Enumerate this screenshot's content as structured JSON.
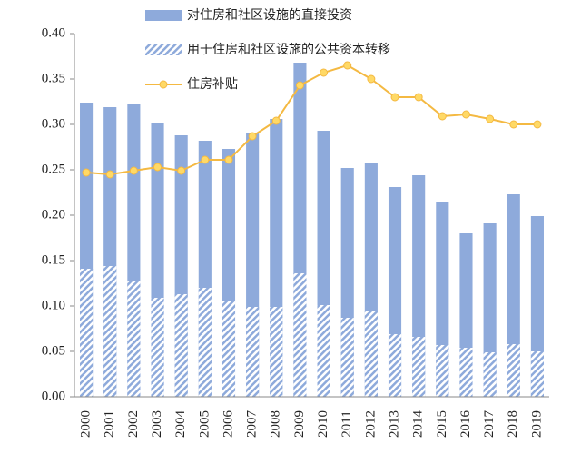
{
  "chart_data": {
    "type": "bar-line",
    "categories": [
      "2000",
      "2001",
      "2002",
      "2003",
      "2004",
      "2005",
      "2006",
      "2007",
      "2008",
      "2009",
      "2010",
      "2011",
      "2012",
      "2013",
      "2014",
      "2015",
      "2016",
      "2017",
      "2018",
      "2019"
    ],
    "series": [
      {
        "name": "对住房和社区设施的直接投资",
        "type": "bar",
        "color": "#8eaadb",
        "values": [
          0.324,
          0.319,
          0.322,
          0.301,
          0.288,
          0.282,
          0.273,
          0.291,
          0.306,
          0.368,
          0.293,
          0.252,
          0.258,
          0.231,
          0.244,
          0.214,
          0.18,
          0.191,
          0.223,
          0.199
        ]
      },
      {
        "name": "用于住房和社区设施的公共资本转移",
        "type": "hatched-bar",
        "color": "#8eaadb",
        "values": [
          0.141,
          0.144,
          0.127,
          0.109,
          0.113,
          0.12,
          0.105,
          0.099,
          0.099,
          0.136,
          0.101,
          0.087,
          0.095,
          0.069,
          0.066,
          0.057,
          0.054,
          0.049,
          0.058,
          0.05
        ]
      },
      {
        "name": "住房补贴",
        "type": "line",
        "color": "#f4b942",
        "values": [
          0.247,
          0.245,
          0.249,
          0.253,
          0.249,
          0.261,
          0.261,
          0.287,
          0.304,
          0.343,
          0.357,
          0.365,
          0.35,
          0.33,
          0.33,
          0.309,
          0.311,
          0.306,
          0.3,
          0.3
        ]
      }
    ],
    "ylim": [
      0,
      0.4
    ],
    "yticks": [
      {
        "value": 0,
        "label": "0.00"
      },
      0.05,
      {
        "value": 0.1,
        "label": "0.10"
      },
      0.15,
      {
        "value": 0.2,
        "label": "0.20"
      },
      0.25,
      {
        "value": 0.3,
        "label": "0.30"
      },
      0.35,
      {
        "value": 0.4,
        "label": "0.40"
      }
    ],
    "grid": false
  }
}
